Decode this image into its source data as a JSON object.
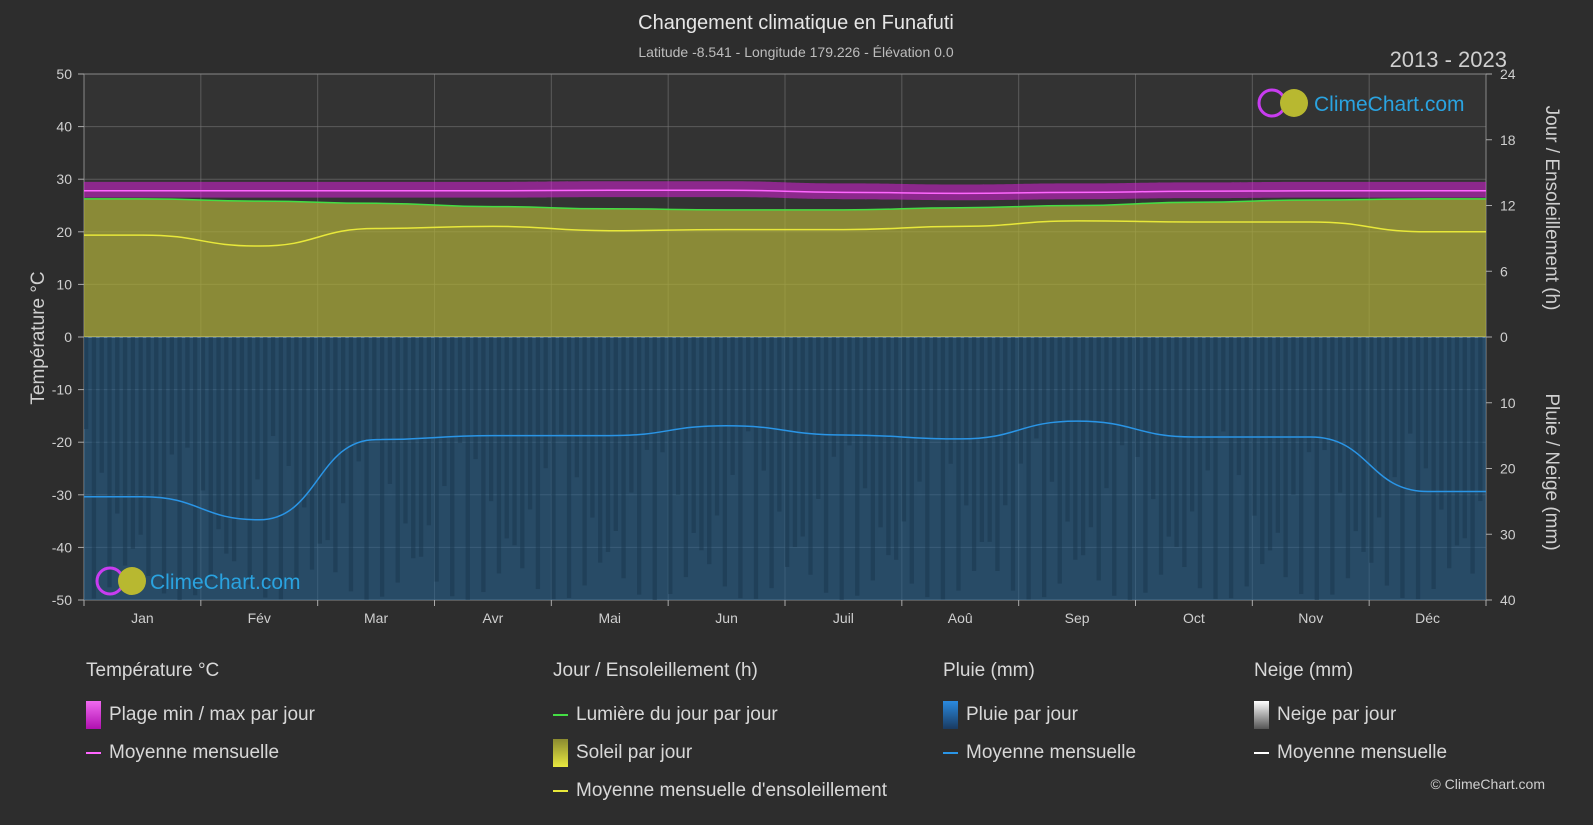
{
  "header": {
    "title": "Changement climatique en Funafuti",
    "subtitle": "Latitude -8.541 - Longitude 179.226 - Élévation 0.0",
    "year_range": "2013 - 2023"
  },
  "brand": {
    "name": "ClimeChart.com",
    "copyright": "© ClimeChart.com"
  },
  "axes": {
    "left_label": "Température °C",
    "right_top_label": "Jour / Ensoleillement (h)",
    "right_bottom_label": "Pluie / Neige (mm)",
    "left_ticks": [
      "50",
      "40",
      "30",
      "20",
      "10",
      "0",
      "-10",
      "-20",
      "-30",
      "-40",
      "-50"
    ],
    "right_top_ticks": [
      "24",
      "18",
      "12",
      "6",
      "0"
    ],
    "right_bottom_ticks": [
      "10",
      "20",
      "30",
      "40"
    ]
  },
  "legend": {
    "temperature": {
      "title": "Température °C",
      "range": "Plage min / max par jour",
      "mean": "Moyenne mensuelle"
    },
    "sun": {
      "title": "Jour / Ensoleillement (h)",
      "daylight": "Lumière du jour par jour",
      "sunshine": "Soleil par jour",
      "mean": "Moyenne mensuelle d'ensoleillement"
    },
    "rain": {
      "title": "Pluie (mm)",
      "daily": "Pluie par jour",
      "mean": "Moyenne mensuelle"
    },
    "snow": {
      "title": "Neige (mm)",
      "daily": "Neige par jour",
      "mean": "Moyenne mensuelle"
    }
  },
  "colors": {
    "temp_band": "#d61fd6",
    "temp_mean": "#ff66ff",
    "daylight": "#44dd44",
    "sunshine_fill": "#a8a83a",
    "sunshine_mean": "#e8e83a",
    "rain_fill": "#1f5f8f",
    "rain_mean": "#2a95e6",
    "snow_mean": "#ffffff"
  },
  "chart_data": {
    "type": "line",
    "categories": [
      "Jan",
      "Fév",
      "Mar",
      "Avr",
      "Mai",
      "Jun",
      "Juil",
      "Aoû",
      "Sep",
      "Oct",
      "Nov",
      "Déc"
    ],
    "ylim_temperature": [
      -50,
      50
    ],
    "ylim_sun_hours": [
      0,
      24
    ],
    "ylim_precip_mm": [
      0,
      40
    ],
    "grid": true,
    "series": [
      {
        "name": "Moyenne mensuelle",
        "unit": "°C",
        "values": [
          27.8,
          27.8,
          27.8,
          27.8,
          27.9,
          27.9,
          27.5,
          27.3,
          27.5,
          27.7,
          27.8,
          27.8
        ]
      },
      {
        "name": "Lumière du jour par jour",
        "unit": "h",
        "values": [
          12.6,
          12.4,
          12.2,
          11.9,
          11.7,
          11.6,
          11.6,
          11.8,
          12.0,
          12.3,
          12.5,
          12.6
        ]
      },
      {
        "name": "Moyenne mensuelle d'ensoleillement",
        "unit": "h",
        "values": [
          9.3,
          8.3,
          9.9,
          10.1,
          9.7,
          9.8,
          9.8,
          10.1,
          10.6,
          10.5,
          10.5,
          9.6
        ]
      },
      {
        "name": "Moyenne mensuelle",
        "unit": "mm",
        "values": [
          24.3,
          27.8,
          15.6,
          15.0,
          15.0,
          13.5,
          14.9,
          15.5,
          12.8,
          15.2,
          15.2,
          23.5
        ]
      }
    ],
    "temperature_band": {
      "min": [
        26.5,
        26.5,
        26.5,
        26.5,
        26.6,
        26.6,
        26.2,
        26.0,
        26.2,
        26.4,
        26.5,
        26.5
      ],
      "max": [
        29.5,
        29.5,
        29.5,
        29.5,
        29.6,
        29.6,
        29.2,
        29.0,
        29.2,
        29.4,
        29.5,
        29.5
      ]
    }
  }
}
